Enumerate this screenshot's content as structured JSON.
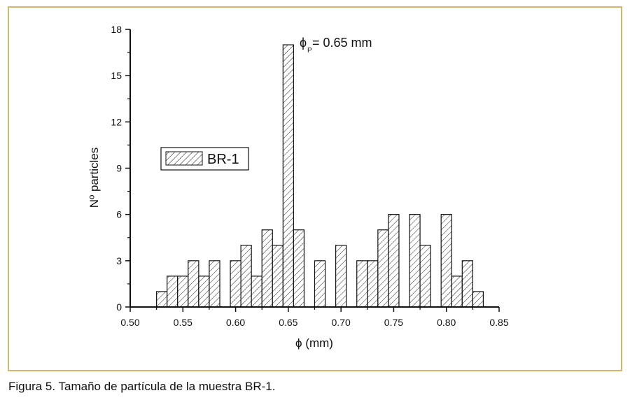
{
  "caption": "Figura 5. Tamaño de partícula de la muestra BR-1.",
  "chart_data": {
    "type": "bar",
    "title": "",
    "xlabel": "ϕ (mm)",
    "ylabel": "Nº particles",
    "xlim": [
      0.5,
      0.85
    ],
    "ylim": [
      0,
      18
    ],
    "xticks": [
      "0.50",
      "0.55",
      "0.60",
      "0.65",
      "0.70",
      "0.75",
      "0.80",
      "0.85"
    ],
    "yticks": [
      "0",
      "3",
      "6",
      "9",
      "12",
      "15",
      "18"
    ],
    "bin_width": 0.01,
    "legend": {
      "label": "BR-1",
      "placement": "middle-left"
    },
    "annotation": {
      "symbol": "ϕ",
      "subscript": "P",
      "text": "= 0.65 mm"
    },
    "grid": false,
    "series": [
      {
        "name": "BR-1",
        "x": [
          0.53,
          0.54,
          0.55,
          0.56,
          0.57,
          0.58,
          0.59,
          0.6,
          0.61,
          0.62,
          0.63,
          0.64,
          0.65,
          0.66,
          0.67,
          0.68,
          0.69,
          0.7,
          0.71,
          0.72,
          0.73,
          0.74,
          0.75,
          0.76,
          0.77,
          0.78,
          0.79,
          0.8,
          0.81,
          0.82,
          0.83
        ],
        "values": [
          1,
          2,
          2,
          3,
          2,
          3,
          0,
          3,
          4,
          2,
          5,
          4,
          17,
          5,
          0,
          3,
          0,
          4,
          0,
          3,
          3,
          5,
          6,
          0,
          6,
          4,
          0,
          6,
          2,
          3,
          1
        ]
      }
    ]
  }
}
